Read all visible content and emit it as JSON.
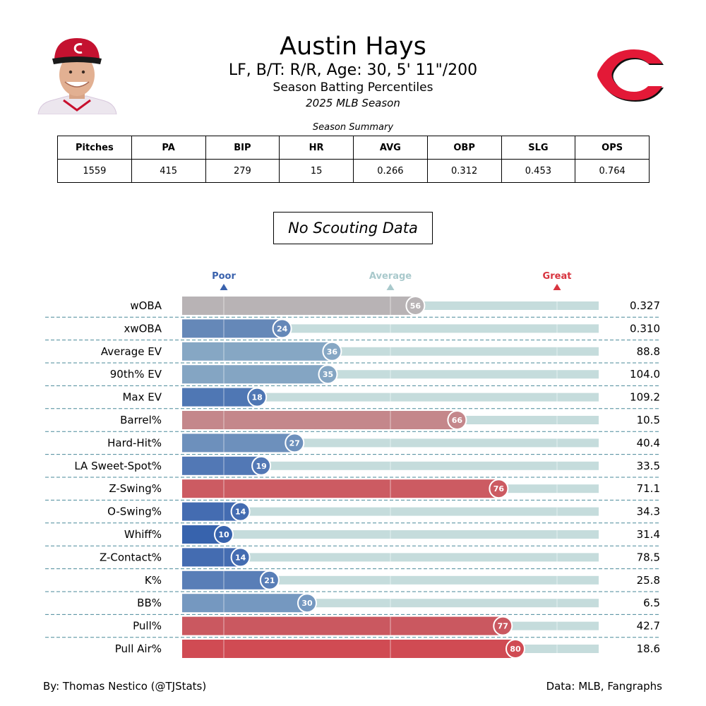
{
  "header": {
    "name": "Austin Hays",
    "info": "LF, B/T: R/R, Age: 30, 5' 11\"/200",
    "subtitle": "Season Batting Percentiles",
    "season": "2025 MLB Season"
  },
  "colors": {
    "poor": "#3a62ad",
    "average": "#a9c9cc",
    "great": "#d8343f",
    "track": "#c5dcdc",
    "separator": "#4a8a9a",
    "logo_red": "#e31937"
  },
  "summary": {
    "caption": "Season Summary",
    "headers": [
      "Pitches",
      "PA",
      "BIP",
      "HR",
      "AVG",
      "OBP",
      "SLG",
      "OPS"
    ],
    "values": [
      "1559",
      "415",
      "279",
      "15",
      "0.266",
      "0.312",
      "0.453",
      "0.764"
    ]
  },
  "scouting": {
    "label": "No Scouting Data"
  },
  "chart_data": {
    "type": "bar",
    "orientation": "horizontal",
    "percentile_range": [
      0,
      100
    ],
    "scale_markers": [
      {
        "label": "Poor",
        "percentile": 10,
        "color": "#3a62ad"
      },
      {
        "label": "Average",
        "percentile": 50,
        "color": "#a9c9cc"
      },
      {
        "label": "Great",
        "percentile": 90,
        "color": "#d8343f"
      }
    ],
    "metrics": [
      {
        "label": "wOBA",
        "percentile": 56,
        "value": "0.327",
        "color": "#b8b3b5"
      },
      {
        "label": "xwOBA",
        "percentile": 24,
        "value": "0.310",
        "color": "#6588b8"
      },
      {
        "label": "Average EV",
        "percentile": 36,
        "value": "88.8",
        "color": "#86a7c4"
      },
      {
        "label": "90th% EV",
        "percentile": 35,
        "value": "104.0",
        "color": "#84a5c3"
      },
      {
        "label": "Max EV",
        "percentile": 18,
        "value": "109.2",
        "color": "#4f77b4"
      },
      {
        "label": "Barrel%",
        "percentile": 66,
        "value": "10.5",
        "color": "#c4878b"
      },
      {
        "label": "Hard-Hit%",
        "percentile": 27,
        "value": "40.4",
        "color": "#6d90bc"
      },
      {
        "label": "LA Sweet-Spot%",
        "percentile": 19,
        "value": "33.5",
        "color": "#5278b5"
      },
      {
        "label": "Z-Swing%",
        "percentile": 76,
        "value": "71.1",
        "color": "#cc5b62"
      },
      {
        "label": "O-Swing%",
        "percentile": 14,
        "value": "34.3",
        "color": "#446cb1"
      },
      {
        "label": "Whiff%",
        "percentile": 10,
        "value": "31.4",
        "color": "#3763ad"
      },
      {
        "label": "Z-Contact%",
        "percentile": 14,
        "value": "78.5",
        "color": "#446cb1"
      },
      {
        "label": "K%",
        "percentile": 21,
        "value": "25.8",
        "color": "#597eb7"
      },
      {
        "label": "BB%",
        "percentile": 30,
        "value": "6.5",
        "color": "#7598c0"
      },
      {
        "label": "Pull%",
        "percentile": 77,
        "value": "42.7",
        "color": "#ca5860"
      },
      {
        "label": "Pull Air%",
        "percentile": 80,
        "value": "18.6",
        "color": "#d04b53"
      }
    ]
  },
  "footer": {
    "credit": "By: Thomas Nestico (@TJStats)",
    "source": "Data: MLB, Fangraphs"
  }
}
